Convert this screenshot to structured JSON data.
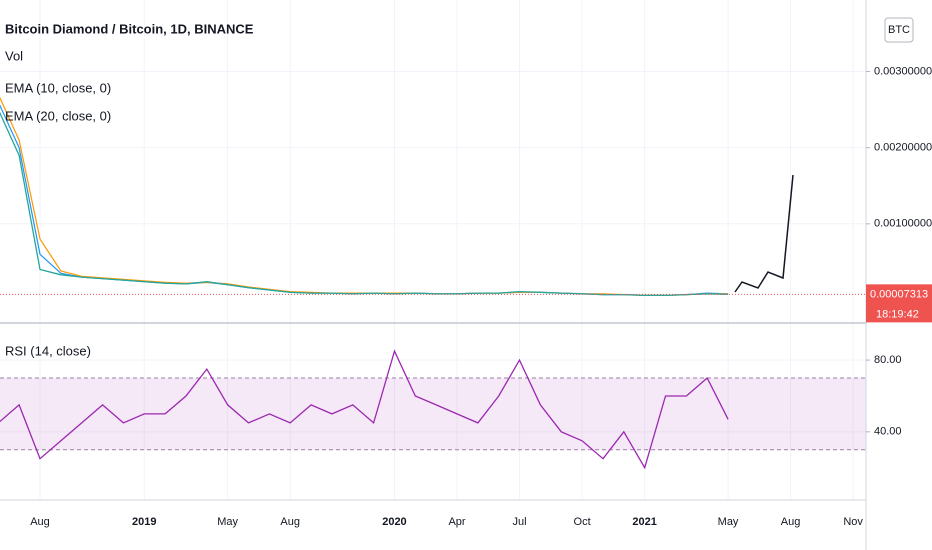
{
  "chart_data": [
    {
      "type": "line",
      "title": "Bitcoin Diamond / Bitcoin, 1D, BINANCE",
      "currency_button": "BTC",
      "volume_label": "Vol",
      "last_price_label": "0.00007313",
      "countdown": "18:19:42",
      "x": [
        "2018-06",
        "2018-07",
        "2018-08",
        "2018-09",
        "2018-10",
        "2018-11",
        "2018-12",
        "2019-01",
        "2019-02",
        "2019-03",
        "2019-04",
        "2019-05",
        "2019-06",
        "2019-07",
        "2019-08",
        "2019-09",
        "2019-10",
        "2019-11",
        "2019-12",
        "2020-01",
        "2020-02",
        "2020-03",
        "2020-04",
        "2020-05",
        "2020-06",
        "2020-07",
        "2020-08",
        "2020-09",
        "2020-10",
        "2020-11",
        "2020-12",
        "2021-01",
        "2021-02",
        "2021-03",
        "2021-04",
        "2021-05",
        "2021-06",
        "2021-07",
        "2021-08",
        "2021-09",
        "2021-10",
        "2021-11"
      ],
      "values": [
        0.0025,
        0.0019,
        0.0004,
        0.00033,
        0.0003,
        0.00028,
        0.00026,
        0.00024,
        0.00022,
        0.00021,
        0.00024,
        0.0002,
        0.00016,
        0.00013,
        0.0001,
        9e-05,
        9e-05,
        8e-05,
        9e-05,
        8e-05,
        9e-05,
        8e-05,
        8e-05,
        9e-05,
        9e-05,
        0.00011,
        0.0001,
        9e-05,
        8e-05,
        7e-05,
        7e-05,
        6e-05,
        6e-05,
        7e-05,
        8e-05,
        7.313e-05,
        null,
        null,
        null,
        null,
        null,
        null
      ],
      "color": "#26a69a",
      "series": [
        {
          "name": "EMA (10, close, 0)",
          "color": "#2196f3",
          "values": [
            0.0026,
            0.002,
            0.0006,
            0.00035,
            0.0003,
            0.00028,
            0.00026,
            0.00024,
            0.00022,
            0.00021,
            0.00023,
            0.0002,
            0.00016,
            0.00013,
            0.0001,
            9e-05,
            9e-05,
            8e-05,
            9e-05,
            8e-05,
            9e-05,
            8e-05,
            8e-05,
            9e-05,
            9e-05,
            0.0001,
            0.0001,
            9e-05,
            8e-05,
            7e-05,
            7e-05,
            6e-05,
            6e-05,
            7e-05,
            9e-05,
            8e-05,
            null,
            null,
            null,
            null,
            null,
            null
          ]
        },
        {
          "name": "EMA (20, close, 0)",
          "color": "#ff9800",
          "values": [
            0.0027,
            0.0021,
            0.0008,
            0.00038,
            0.00031,
            0.00029,
            0.00027,
            0.00025,
            0.00023,
            0.00022,
            0.00023,
            0.00021,
            0.00017,
            0.00014,
            0.00011,
            0.0001,
            9e-05,
            9e-05,
            9e-05,
            9e-05,
            9e-05,
            8e-05,
            8e-05,
            9e-05,
            9e-05,
            0.0001,
            0.0001,
            9e-05,
            8e-05,
            8e-05,
            7e-05,
            6e-05,
            6e-05,
            7e-05,
            8e-05,
            8e-05,
            null,
            null,
            null,
            null,
            null,
            null
          ]
        }
      ],
      "ylim": [
        -0.00029,
        0.00394
      ],
      "yticks": [
        {
          "value": 0.001,
          "label": "0.00100000"
        },
        {
          "value": 0.002,
          "label": "0.00200000"
        },
        {
          "value": 0.003,
          "label": "0.00300000"
        }
      ],
      "xticks": [
        {
          "value": "2018-08",
          "label": "Aug"
        },
        {
          "value": "2019-01",
          "label": "2019"
        },
        {
          "value": "2019-05",
          "label": "May"
        },
        {
          "value": "2019-08",
          "label": "Aug"
        },
        {
          "value": "2020-01",
          "label": "2020"
        },
        {
          "value": "2020-04",
          "label": "Apr"
        },
        {
          "value": "2020-07",
          "label": "Jul"
        },
        {
          "value": "2020-10",
          "label": "Oct"
        },
        {
          "value": "2021-01",
          "label": "2021"
        },
        {
          "value": "2021-05",
          "label": "May"
        },
        {
          "value": "2021-08",
          "label": "Aug"
        },
        {
          "value": "2021-11",
          "label": "Nov"
        }
      ],
      "grid": true
    },
    {
      "type": "line",
      "title": "RSI (14, close)",
      "color": "#9c27b0",
      "values": [
        45,
        55,
        25,
        35,
        45,
        55,
        45,
        50,
        50,
        60,
        75,
        55,
        45,
        50,
        45,
        55,
        50,
        55,
        45,
        85,
        60,
        55,
        50,
        45,
        60,
        80,
        55,
        40,
        35,
        25,
        40,
        20,
        60,
        60,
        70,
        47,
        null,
        null,
        null,
        null,
        null,
        null
      ],
      "band": [
        30,
        70
      ],
      "ylim": [
        2,
        99
      ],
      "yticks": [
        {
          "value": 40,
          "label": "40.00"
        },
        {
          "value": 80,
          "label": "80.00"
        }
      ]
    }
  ]
}
